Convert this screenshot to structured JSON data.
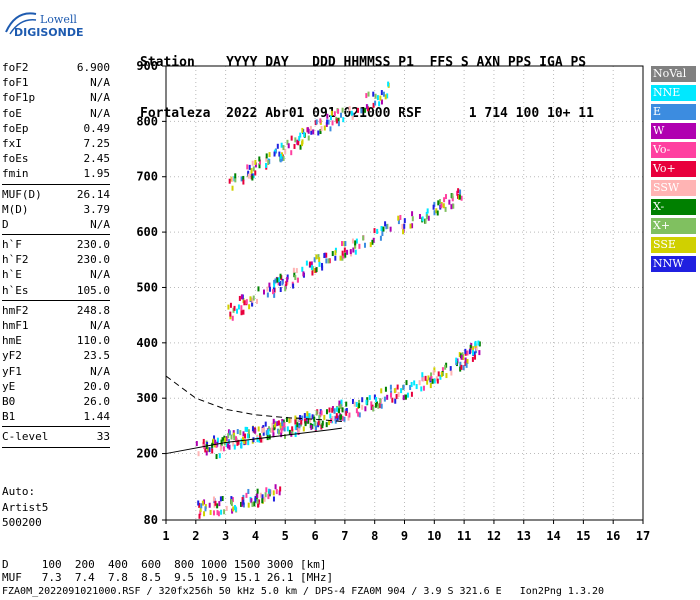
{
  "logo": {
    "line1": "Lowell",
    "line2": "DIGISONDE"
  },
  "header": {
    "line1": "Station    YYYY DAY   DDD HHMMSS P1  FFS S AXN PPS IGA PS",
    "line2": "Fortaleza  2022 Abr01 091 021000 RSF      1 714 100 10+ 11"
  },
  "params": [
    {
      "name": "foF2",
      "value": "6.900"
    },
    {
      "name": "foF1",
      "value": "N/A"
    },
    {
      "name": "foF1p",
      "value": "N/A"
    },
    {
      "name": "foE",
      "value": "N/A"
    },
    {
      "name": "foEp",
      "value": "0.49"
    },
    {
      "name": "fxI",
      "value": "7.25"
    },
    {
      "name": "foEs",
      "value": "2.45"
    },
    {
      "name": "fmin",
      "value": "1.95"
    },
    {
      "sep": true
    },
    {
      "name": "MUF(D)",
      "value": "26.14"
    },
    {
      "name": "M(D)",
      "value": "3.79"
    },
    {
      "name": "D",
      "value": "N/A"
    },
    {
      "sep": true
    },
    {
      "name": "h`F",
      "value": "230.0"
    },
    {
      "name": "h`F2",
      "value": "230.0"
    },
    {
      "name": "h`E",
      "value": "N/A"
    },
    {
      "name": "h`Es",
      "value": "105.0"
    },
    {
      "sep": true
    },
    {
      "name": "hmF2",
      "value": "248.8"
    },
    {
      "name": "hmF1",
      "value": "N/A"
    },
    {
      "name": "hmE",
      "value": "110.0"
    },
    {
      "name": "yF2",
      "value": "23.5"
    },
    {
      "name": "yF1",
      "value": "N/A"
    },
    {
      "name": "yE",
      "value": "20.0"
    },
    {
      "name": "B0",
      "value": "26.0"
    },
    {
      "name": "B1",
      "value": "1.44"
    },
    {
      "sep": true
    },
    {
      "name": "C-level",
      "value": "33"
    },
    {
      "sep": true
    }
  ],
  "auto": {
    "line1": "Auto:",
    "line2": "Artist5",
    "line3": "500200"
  },
  "legend": [
    {
      "label": "NoVal",
      "color": "#808080"
    },
    {
      "label": "NNE",
      "color": "#00e8ff"
    },
    {
      "label": "E",
      "color": "#3c8ce0"
    },
    {
      "label": "W",
      "color": "#b000b0"
    },
    {
      "label": "Vo-",
      "color": "#ff40a0"
    },
    {
      "label": "Vo+",
      "color": "#e8003c"
    },
    {
      "label": "SSW",
      "color": "#ffb4b4"
    },
    {
      "label": "X-",
      "color": "#008000"
    },
    {
      "label": "X+",
      "color": "#80c060"
    },
    {
      "label": "SSE",
      "color": "#d0d000"
    },
    {
      "label": "NNW",
      "color": "#2020e0"
    }
  ],
  "footer": {
    "line1": "D     100  200  400  600  800 1000 1500 3000 [km]",
    "line2": "MUF   7.3  7.4  7.8  8.5  9.5 10.9 15.1 26.1 [MHz]",
    "line3": "FZA0M_2022091021000.RSF / 320fx256h 50 kHz 5.0 km / DPS-4 FZA0M 904 / 3.9 S 321.6 E   Ion2Png 1.3.20"
  },
  "chart_data": {
    "type": "scatter",
    "xlim": [
      1,
      17
    ],
    "ylim": [
      80,
      900
    ],
    "xticks": [
      "1",
      "2",
      "3",
      "4",
      "5",
      "6",
      "7",
      "8",
      "9",
      "10",
      "11",
      "12",
      "13",
      "14",
      "15",
      "16",
      "17"
    ],
    "yticks": [
      "80",
      "200",
      "300",
      "400",
      "500",
      "600",
      "700",
      "800",
      "900"
    ],
    "grid": "dotted vertical and horizontal",
    "traces": [
      {
        "name": "O-trace F2",
        "x": [
          2.0,
          3.0,
          4.0,
          5.0,
          6.0,
          6.9
        ],
        "y": [
          210,
          228,
          240,
          250,
          262,
          285
        ]
      },
      {
        "name": "X-trace F2",
        "x": [
          2.6,
          4.0,
          5.0,
          6.0,
          7.0,
          8.0,
          9.0,
          10.0,
          11.0,
          11.5
        ],
        "y": [
          210,
          240,
          255,
          265,
          280,
          300,
          320,
          345,
          375,
          400
        ]
      },
      {
        "name": "Second hop",
        "x": [
          3.0,
          4.0,
          5.0,
          6.0,
          7.0,
          8.5,
          10.0,
          10.9
        ],
        "y": [
          455,
          490,
          515,
          545,
          575,
          610,
          645,
          670
        ]
      },
      {
        "name": "Third hop",
        "x": [
          3.1,
          4.0,
          5.0,
          6.0,
          7.0,
          8.5
        ],
        "y": [
          695,
          720,
          755,
          790,
          820,
          860
        ]
      },
      {
        "name": "Es",
        "x": [
          2.0,
          3.0,
          4.0,
          4.8
        ],
        "y": [
          105,
          112,
          125,
          135
        ]
      }
    ],
    "profile_dashed": {
      "x": [
        1.0,
        2.0,
        3.0,
        4.0,
        5.0,
        6.0,
        6.9
      ],
      "y": [
        340,
        300,
        280,
        270,
        265,
        262,
        258
      ]
    },
    "profile_solid": {
      "x": [
        1.0,
        3.0,
        5.0,
        6.5,
        6.9
      ],
      "y": [
        200,
        220,
        233,
        243,
        246
      ]
    }
  }
}
